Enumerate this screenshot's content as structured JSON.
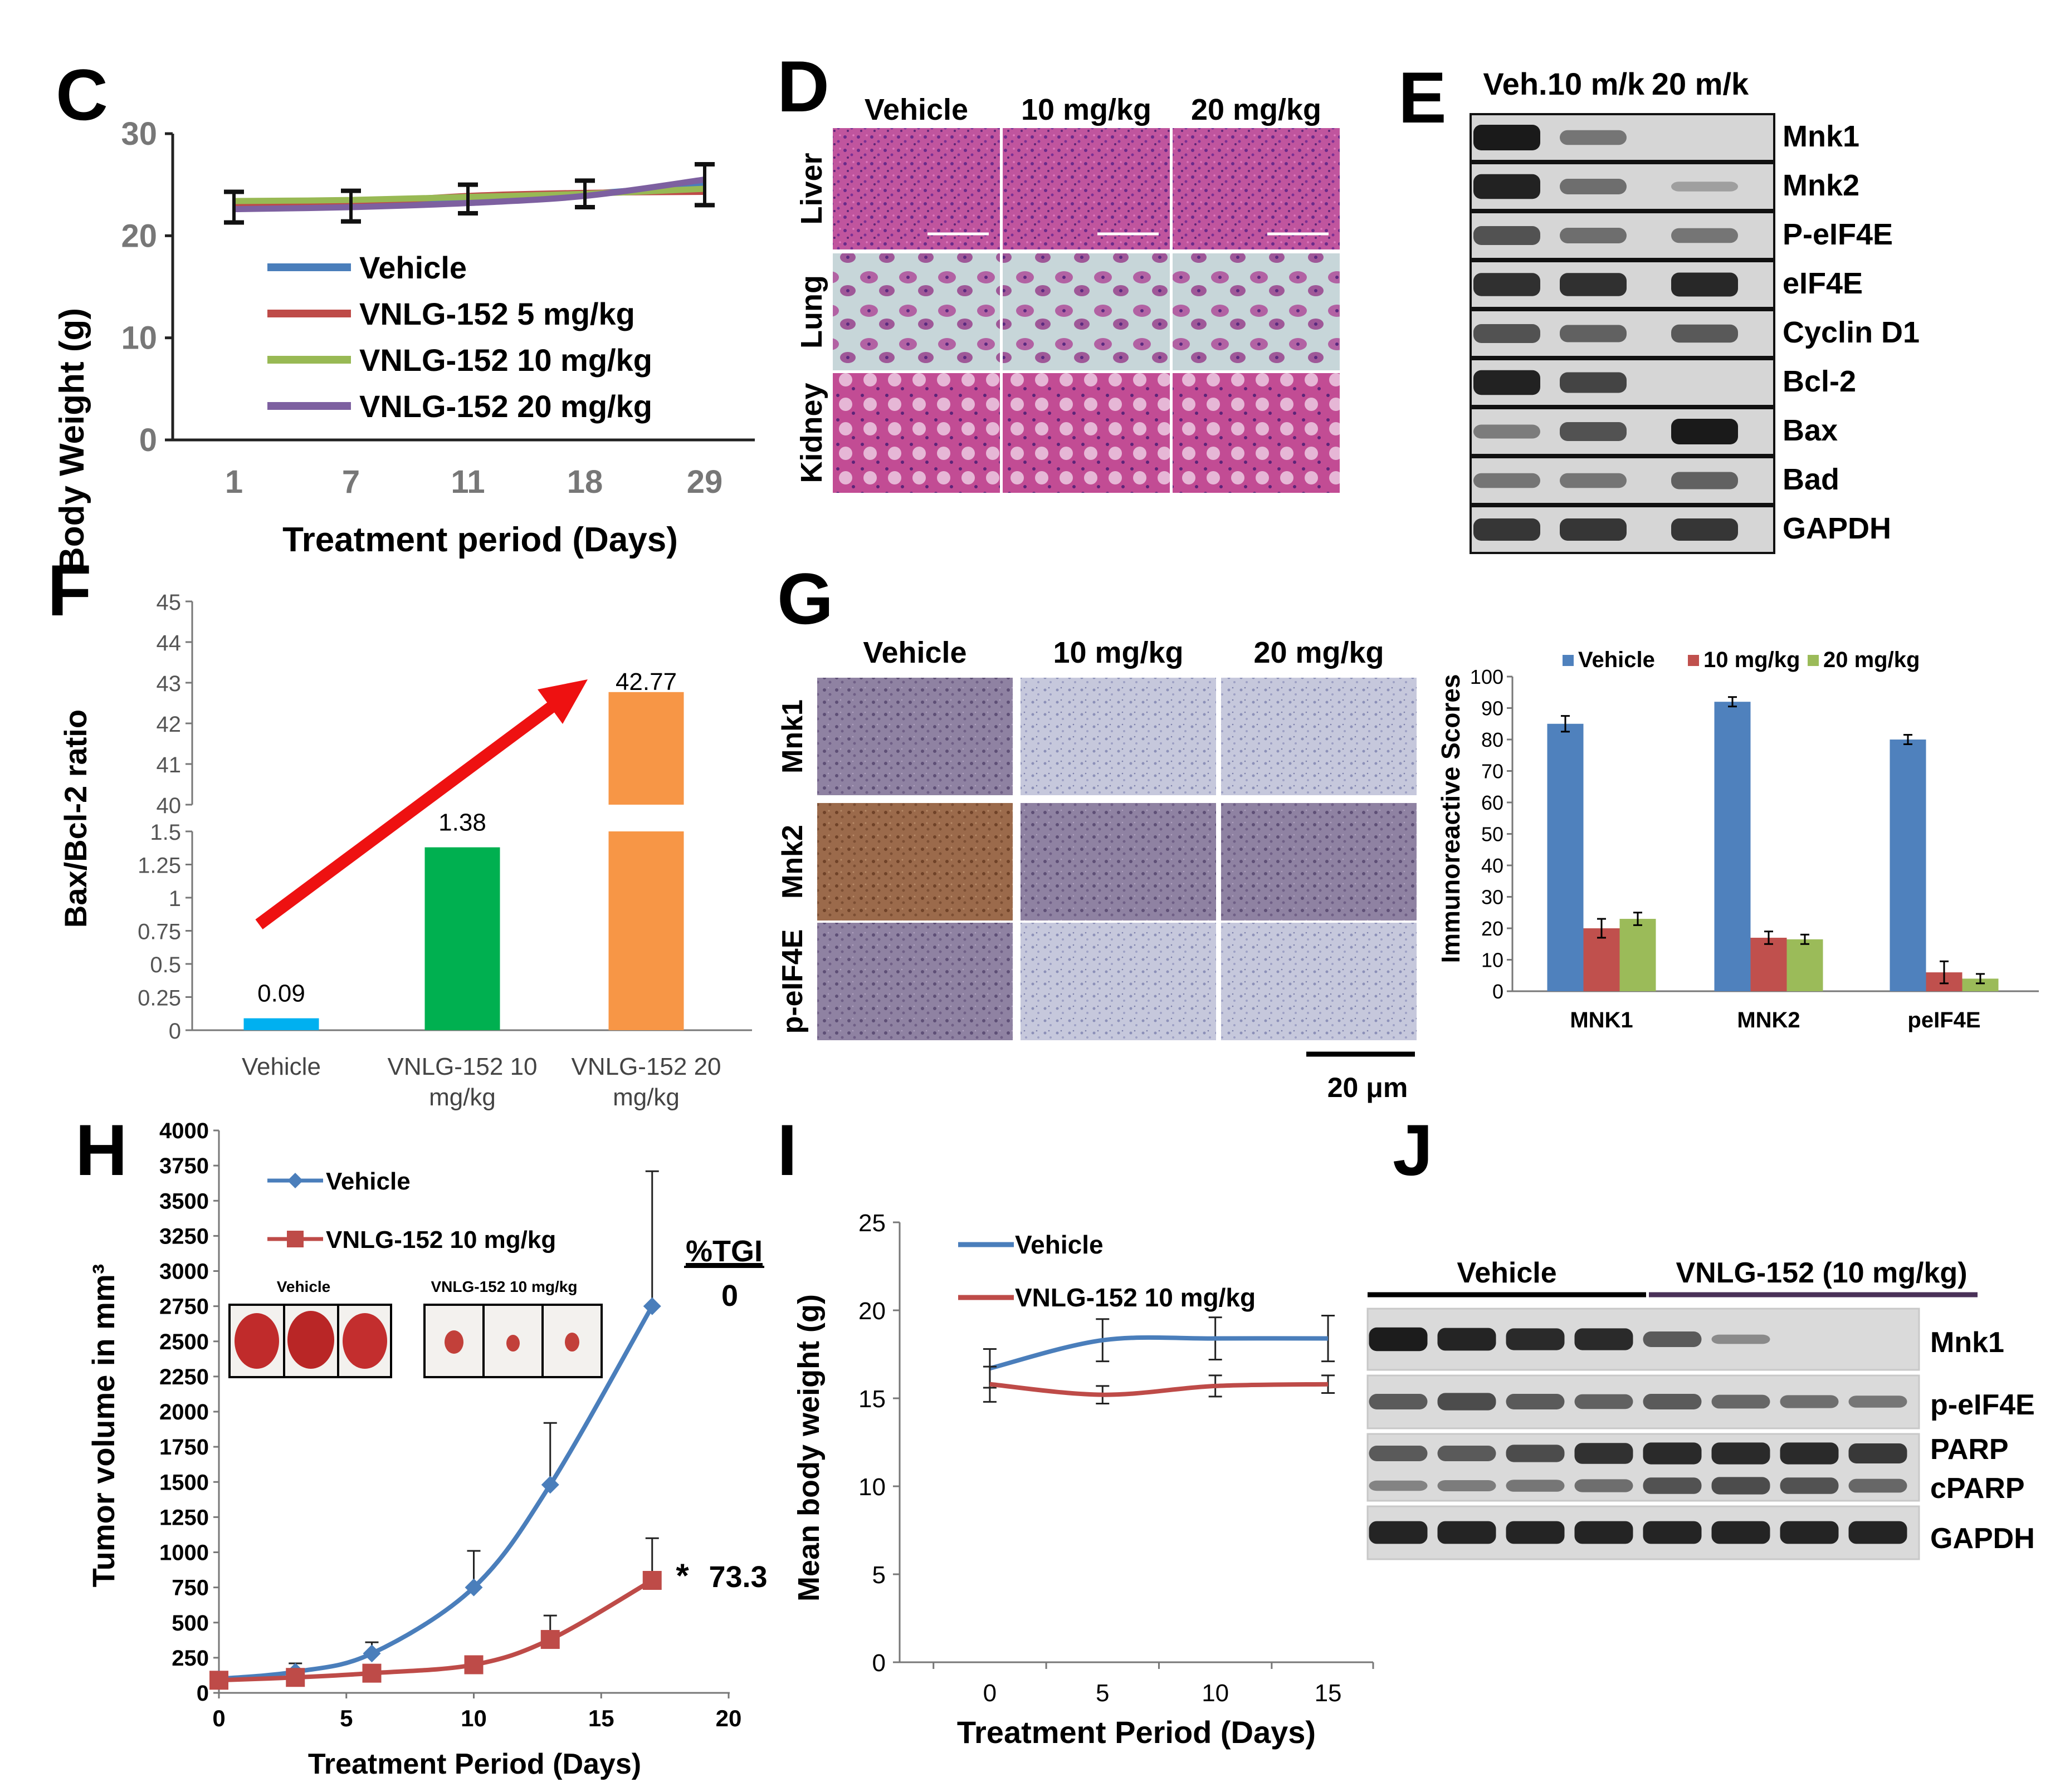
{
  "panels": {
    "C": {
      "letter": "C",
      "chart_data": {
        "type": "line",
        "title": "",
        "xlabel": "Treatment period (Days)",
        "ylabel": "Body Weight (g)",
        "categories": [
          "1",
          "7",
          "11",
          "18",
          "29"
        ],
        "ylim": [
          0,
          30
        ],
        "yticks": [
          "0",
          "10",
          "20",
          "30"
        ],
        "series": [
          {
            "name": "Vehicle",
            "color": "#4a7ebb",
            "values": [
              22.8,
              22.9,
              23.6,
              24.1,
              25.0
            ]
          },
          {
            "name": "VNLG-152 5 mg/kg",
            "color": "#be4b48",
            "values": [
              23.0,
              23.2,
              23.9,
              24.2,
              24.3
            ]
          },
          {
            "name": "VNLG-152 10 mg/kg",
            "color": "#98b954",
            "values": [
              23.4,
              23.5,
              23.8,
              24.1,
              24.6
            ]
          },
          {
            "name": "VNLG-152 20 mg/kg",
            "color": "#7d60a0",
            "values": [
              22.6,
              22.8,
              23.2,
              23.9,
              25.5
            ]
          }
        ]
      }
    },
    "D": {
      "letter": "D",
      "columns": [
        "Vehicle",
        "10 mg/kg",
        "20 mg/kg"
      ],
      "rows": [
        "Liver",
        "Lung",
        "Kidney"
      ]
    },
    "E": {
      "letter": "E",
      "lanes": [
        "Veh.",
        "10 m/k",
        "20 m/k"
      ],
      "rows": [
        {
          "label": "Mnk1",
          "intensity": [
            1.0,
            0.35,
            0.0
          ]
        },
        {
          "label": "Mnk2",
          "intensity": [
            0.95,
            0.4,
            0.05
          ]
        },
        {
          "label": "P-eIF4E",
          "intensity": [
            0.6,
            0.4,
            0.35
          ]
        },
        {
          "label": "eIF4E",
          "intensity": [
            0.85,
            0.85,
            0.9
          ]
        },
        {
          "label": "Cyclin D1",
          "intensity": [
            0.6,
            0.5,
            0.55
          ]
        },
        {
          "label": "Bcl-2",
          "intensity": [
            0.95,
            0.7,
            0.0
          ]
        },
        {
          "label": "Bax",
          "intensity": [
            0.3,
            0.6,
            1.0
          ]
        },
        {
          "label": "Bad",
          "intensity": [
            0.35,
            0.35,
            0.5
          ]
        },
        {
          "label": "GAPDH",
          "intensity": [
            0.8,
            0.8,
            0.8
          ]
        }
      ]
    },
    "F": {
      "letter": "F",
      "chart_data": {
        "type": "bar",
        "title": "",
        "ylabel": "Bax/Bcl-2 ratio",
        "categories": [
          "Vehicle",
          "VNLG-152 10 mg/kg",
          "VNLG-152 20 mg/kg"
        ],
        "category_lines": [
          [
            "Vehicle"
          ],
          [
            "VNLG-152 10",
            "mg/kg"
          ],
          [
            "VNLG-152 20",
            "mg/kg"
          ]
        ],
        "values": [
          0.09,
          1.38,
          42.77
        ],
        "value_labels": [
          "0.09",
          "1.38",
          "42.77"
        ],
        "colors": [
          "#00b0f0",
          "#00b050",
          "#f79646"
        ],
        "axis_break": {
          "lower_ylim": [
            0,
            1.5
          ],
          "upper_ylim": [
            40,
            45
          ]
        },
        "yticks_lower": [
          "0",
          "0.25",
          "0.5",
          "0.75",
          "1",
          "1.25",
          "1.5"
        ],
        "yticks_upper": [
          "40",
          "41",
          "42",
          "43",
          "44",
          "45"
        ],
        "annotation": "red arrow rising from Vehicle to VNLG-152 20 mg/kg"
      }
    },
    "G": {
      "letter": "G",
      "ihc_columns": [
        "Vehicle",
        "10 mg/kg",
        "20 mg/kg"
      ],
      "ihc_rows": [
        "Mnk1",
        "Mnk2",
        "p-eIF4E"
      ],
      "scale_bar": "20 μm",
      "chart_data": {
        "type": "bar",
        "title": "",
        "xlabel": "",
        "ylabel": "Immunoreactive Scores",
        "categories": [
          "MNK1",
          "MNK2",
          "peIF4E"
        ],
        "ylim": [
          0,
          100
        ],
        "yticks": [
          "0",
          "10",
          "20",
          "30",
          "40",
          "50",
          "60",
          "70",
          "80",
          "90",
          "100"
        ],
        "series": [
          {
            "name": "Vehicle",
            "color": "#4f81bd",
            "values": [
              85,
              92,
              80
            ],
            "errors": [
              2.5,
              1.5,
              1.5
            ]
          },
          {
            "name": "10 mg/kg",
            "color": "#c0504d",
            "values": [
              20,
              17,
              6
            ],
            "errors": [
              3,
              2,
              3.5
            ]
          },
          {
            "name": "20 mg/kg",
            "color": "#9bbb59",
            "values": [
              23,
              16.5,
              4
            ],
            "errors": [
              2,
              1.5,
              1.5
            ]
          }
        ]
      }
    },
    "H": {
      "letter": "H",
      "tgi_header": "%TGI",
      "tgi_vehicle": "0",
      "tgi_treated": "73.3",
      "significance": "*",
      "photo_labels": [
        "Vehicle",
        "VNLG-152  10 mg/kg"
      ],
      "chart_data": {
        "type": "line",
        "title": "",
        "xlabel": "Treatment Period (Days)",
        "ylabel": "Tumor volume in mm³",
        "xlim": [
          0,
          20
        ],
        "ylim": [
          0,
          4000
        ],
        "xticks": [
          "0",
          "5",
          "10",
          "15",
          "20"
        ],
        "yticks": [
          "0",
          "250",
          "500",
          "750",
          "1000",
          "1250",
          "1500",
          "1750",
          "2000",
          "2250",
          "2500",
          "2750",
          "3000",
          "3250",
          "3500",
          "3750",
          "4000"
        ],
        "series": [
          {
            "name": "Vehicle",
            "color": "#4a7ebb",
            "x": [
              0,
              3,
              6,
              10,
              13,
              17
            ],
            "values": [
              100,
              150,
              280,
              750,
              1480,
              2750
            ],
            "errors": [
              30,
              60,
              80,
              260,
              440,
              960
            ]
          },
          {
            "name": "VNLG-152 10 mg/kg",
            "color": "#be4b48",
            "x": [
              0,
              3,
              6,
              10,
              13,
              17
            ],
            "values": [
              90,
              110,
              140,
              200,
              380,
              800
            ],
            "errors": [
              20,
              30,
              40,
              50,
              170,
              300
            ]
          }
        ]
      }
    },
    "I": {
      "letter": "I",
      "chart_data": {
        "type": "line",
        "title": "",
        "xlabel": "Treatment Period (Days)",
        "ylabel": "Mean body weight (g)",
        "xlim": [
          -4,
          17
        ],
        "ylim": [
          0,
          25
        ],
        "xticks": [
          "0",
          "5",
          "10",
          "15"
        ],
        "yticks": [
          "0",
          "5",
          "10",
          "15",
          "20",
          "25"
        ],
        "series": [
          {
            "name": "Vehicle",
            "color": "#4a7ebb",
            "x": [
              0,
              5,
              10,
              15
            ],
            "values": [
              16.7,
              18.3,
              18.4,
              18.4
            ],
            "errors": [
              1.1,
              1.2,
              1.2,
              1.3
            ]
          },
          {
            "name": "VNLG-152 10 mg/kg",
            "color": "#be4b48",
            "x": [
              0,
              5,
              10,
              15
            ],
            "values": [
              15.8,
              15.2,
              15.7,
              15.8
            ],
            "errors": [
              1.0,
              0.5,
              0.6,
              0.5
            ]
          }
        ]
      }
    },
    "J": {
      "letter": "J",
      "groups": [
        "Vehicle",
        "VNLG-152 (10 mg/kg)"
      ],
      "rows": [
        {
          "label": "Mnk1",
          "intensity": [
            0.95,
            0.9,
            0.85,
            0.85,
            0.5,
            0.15,
            0.0,
            0.0
          ]
        },
        {
          "label": "p-eIF4E",
          "intensity": [
            0.5,
            0.6,
            0.5,
            0.45,
            0.5,
            0.4,
            0.35,
            0.3
          ]
        },
        {
          "label": "PARP",
          "intensity": [
            0.5,
            0.5,
            0.6,
            0.8,
            0.85,
            0.85,
            0.85,
            0.75
          ]
        },
        {
          "label": "cPARP",
          "intensity": [
            0.2,
            0.25,
            0.3,
            0.35,
            0.55,
            0.6,
            0.55,
            0.4
          ]
        },
        {
          "label": "GAPDH",
          "intensity": [
            0.9,
            0.9,
            0.9,
            0.9,
            0.9,
            0.9,
            0.9,
            0.9
          ]
        }
      ]
    }
  }
}
